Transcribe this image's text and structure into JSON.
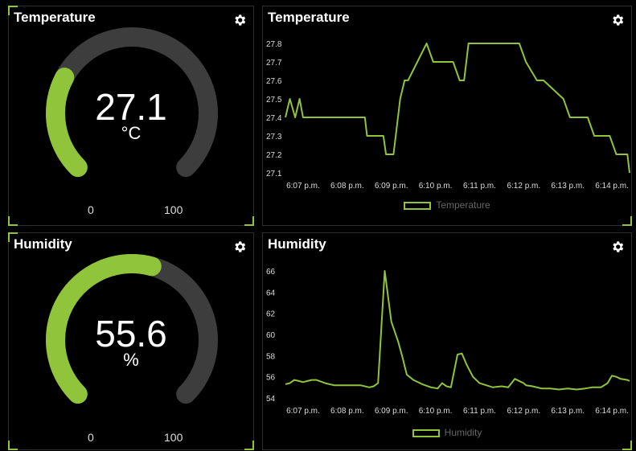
{
  "colors": {
    "accent": "#8fc43b",
    "track": "#3d3d3d",
    "background": "#000000"
  },
  "temp_gauge": {
    "title": "Temperature",
    "value": "27.1",
    "unit": "°C",
    "min": "0",
    "max": "100",
    "level": 27.1,
    "icon": "gear-icon"
  },
  "hum_gauge": {
    "title": "Humidity",
    "value": "55.6",
    "unit": "%",
    "min": "0",
    "max": "100",
    "level": 55.6,
    "icon": "gear-icon"
  },
  "temp_chart": {
    "title": "Temperature",
    "legend": "Temperature",
    "icon": "gear-icon"
  },
  "hum_chart": {
    "title": "Humidity",
    "legend": "Humidity",
    "icon": "gear-icon"
  },
  "chart_data": [
    {
      "type": "line",
      "title": "Temperature",
      "ylim": [
        27.1,
        27.8
      ],
      "yticks": [
        "27.1",
        "27.2",
        "27.3",
        "27.4",
        "27.5",
        "27.6",
        "27.7",
        "27.8"
      ],
      "xticks": [
        "6:07 p.m.",
        "6:08 p.m.",
        "6:09 p.m.",
        "6:10 p.m.",
        "6:11 p.m.",
        "6:12 p.m.",
        "6:13 p.m.",
        "6:14 p.m."
      ],
      "xlim_min": [
        6.6,
        14.4
      ],
      "grid": false,
      "legend_position": "bottom",
      "series": [
        {
          "name": "Temperature",
          "x": [
            6.6,
            6.7,
            6.82,
            6.92,
            7.0,
            8.4,
            8.45,
            8.82,
            8.88,
            9.05,
            9.2,
            9.3,
            9.38,
            9.8,
            9.95,
            10.0,
            10.4,
            10.55,
            10.65,
            10.75,
            11.2,
            11.4,
            11.9,
            12.05,
            12.3,
            12.45,
            12.9,
            13.05,
            13.45,
            13.6,
            13.95,
            14.1,
            14.35,
            14.4
          ],
          "y": [
            27.4,
            27.5,
            27.4,
            27.5,
            27.4,
            27.4,
            27.3,
            27.3,
            27.2,
            27.2,
            27.5,
            27.6,
            27.6,
            27.8,
            27.7,
            27.7,
            27.7,
            27.6,
            27.6,
            27.8,
            27.8,
            27.8,
            27.8,
            27.7,
            27.6,
            27.6,
            27.5,
            27.4,
            27.4,
            27.3,
            27.3,
            27.2,
            27.2,
            27.1
          ]
        }
      ]
    },
    {
      "type": "line",
      "title": "Humidity",
      "ylim": [
        54,
        66
      ],
      "yticks": [
        "54",
        "56",
        "58",
        "60",
        "62",
        "64",
        "66"
      ],
      "xticks": [
        "6:07 p.m.",
        "6:08 p.m.",
        "6:09 p.m.",
        "6:10 p.m.",
        "6:11 p.m.",
        "6:12 p.m.",
        "6:13 p.m.",
        "6:14 p.m."
      ],
      "xlim_min": [
        6.6,
        14.4
      ],
      "grid": false,
      "legend_position": "bottom",
      "series": [
        {
          "name": "Humidity",
          "x": [
            6.6,
            6.7,
            6.8,
            6.9,
            7.0,
            7.1,
            7.2,
            7.3,
            7.5,
            7.7,
            7.9,
            8.1,
            8.3,
            8.5,
            8.6,
            8.7,
            8.85,
            9.0,
            9.15,
            9.25,
            9.35,
            9.5,
            9.7,
            9.9,
            10.05,
            10.15,
            10.25,
            10.35,
            10.5,
            10.6,
            10.7,
            10.85,
            11.0,
            11.15,
            11.3,
            11.5,
            11.65,
            11.8,
            11.95,
            12.0,
            12.05,
            12.2,
            12.4,
            12.6,
            12.8,
            13.0,
            13.2,
            13.4,
            13.55,
            13.75,
            13.9,
            14.0,
            14.1,
            14.2,
            14.35,
            14.4
          ],
          "y": [
            55.3,
            55.4,
            55.7,
            55.6,
            55.5,
            55.6,
            55.7,
            55.7,
            55.4,
            55.2,
            55.2,
            55.2,
            55.2,
            55.0,
            55.1,
            55.4,
            66.0,
            61.2,
            59.4,
            57.9,
            56.2,
            55.7,
            55.3,
            55.0,
            54.9,
            55.4,
            55.1,
            55.0,
            58.1,
            58.2,
            57.2,
            56.0,
            55.4,
            55.2,
            55.0,
            55.1,
            55.0,
            55.8,
            55.5,
            55.4,
            55.2,
            55.1,
            54.9,
            54.9,
            54.8,
            54.9,
            54.8,
            54.9,
            55.0,
            55.0,
            55.4,
            56.1,
            56.0,
            55.8,
            55.7,
            55.6
          ]
        }
      ]
    }
  ]
}
